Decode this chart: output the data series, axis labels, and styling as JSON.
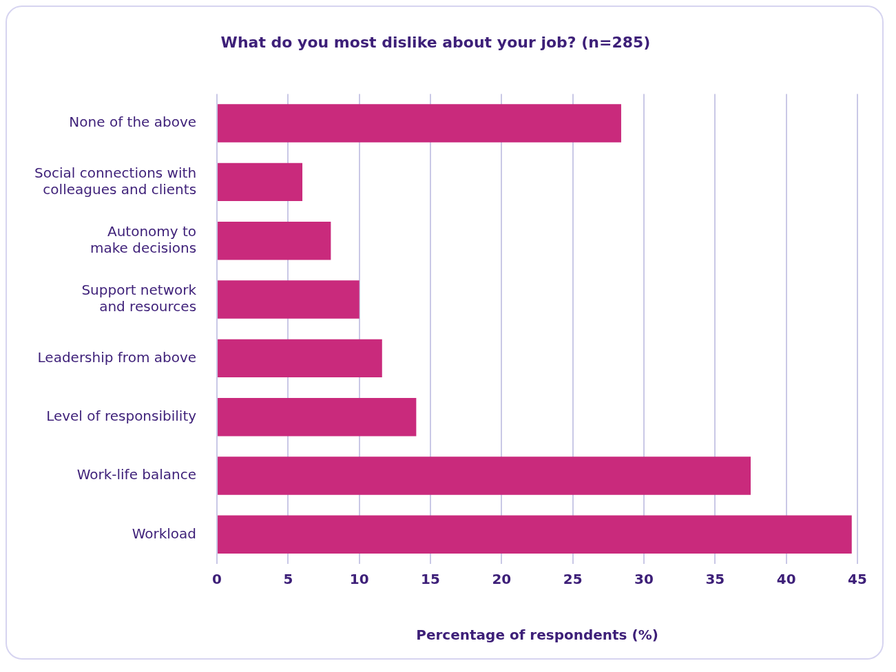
{
  "chart_data": {
    "type": "bar",
    "orientation": "horizontal",
    "title": "What do you most dislike about your job? (n=285)",
    "xlabel": "Percentage of respondents (%)",
    "categories": [
      "None of the above",
      "Social connections with colleagues and clients",
      "Autonomy to make decisions",
      "Support network and resources",
      "Leadership from above",
      "Level of responsibility",
      "Work-life balance",
      "Workload"
    ],
    "values": [
      28.4,
      6.0,
      8.0,
      10.0,
      11.6,
      14.0,
      37.5,
      44.6
    ],
    "color": "#c92a7c",
    "xlim": [
      0,
      45
    ],
    "xticks": [
      0,
      5,
      10,
      15,
      20,
      25,
      30,
      35,
      40,
      45
    ],
    "grid": "x",
    "legend": false
  }
}
